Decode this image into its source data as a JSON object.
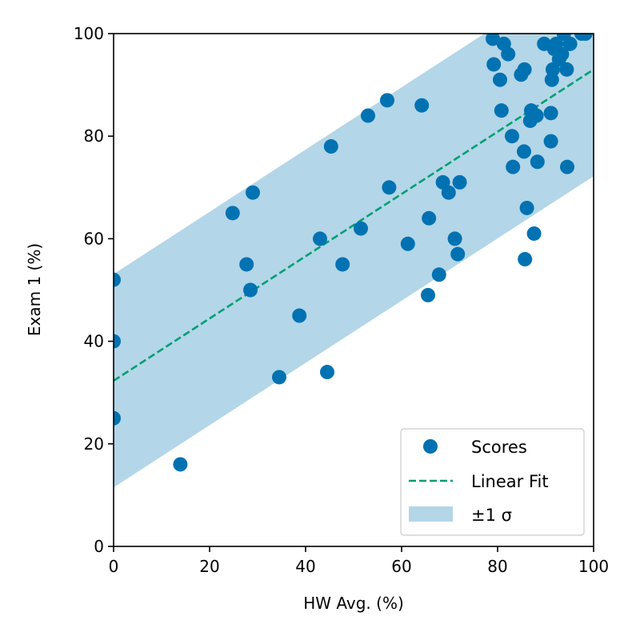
{
  "chart_data": {
    "type": "scatter",
    "title": "",
    "xlabel": "HW Avg. (%)",
    "ylabel": "Exam 1 (%)",
    "xlim": [
      0,
      100
    ],
    "ylim": [
      0,
      100
    ],
    "xticks": [
      "0",
      "20",
      "40",
      "60",
      "80",
      "100"
    ],
    "yticks": [
      "0",
      "20",
      "40",
      "60",
      "80",
      "100"
    ],
    "grid": false,
    "legend_position": "lower-right",
    "legend": {
      "scores": "Scores",
      "fit": "Linear Fit",
      "band": "±1 σ"
    },
    "colors": {
      "points": "#0072b2",
      "fit": "#009e73",
      "band": "#b3d6e8"
    },
    "fit": {
      "slope": 0.607,
      "intercept": 32.3
    },
    "band_sigma": 20.8,
    "series": [
      {
        "name": "Scores",
        "points": [
          [
            0,
            52
          ],
          [
            0,
            40
          ],
          [
            0,
            25
          ],
          [
            13.9,
            16
          ],
          [
            24.8,
            65
          ],
          [
            27.7,
            55
          ],
          [
            28.5,
            50
          ],
          [
            29,
            69
          ],
          [
            34.5,
            33
          ],
          [
            38.7,
            45
          ],
          [
            43,
            60
          ],
          [
            44.5,
            34
          ],
          [
            45.3,
            78
          ],
          [
            47.7,
            55
          ],
          [
            51.5,
            62
          ],
          [
            53,
            84
          ],
          [
            57,
            87
          ],
          [
            57.4,
            70
          ],
          [
            61.3,
            59
          ],
          [
            64.2,
            86
          ],
          [
            65.5,
            49
          ],
          [
            65.7,
            64
          ],
          [
            67.8,
            53
          ],
          [
            68.6,
            71
          ],
          [
            69.8,
            69
          ],
          [
            71.1,
            60
          ],
          [
            71.7,
            57
          ],
          [
            72.1,
            71
          ],
          [
            79,
            99
          ],
          [
            79.2,
            94
          ],
          [
            80.5,
            91
          ],
          [
            80.8,
            85
          ],
          [
            81.3,
            98
          ],
          [
            82.2,
            96
          ],
          [
            83,
            80
          ],
          [
            83.2,
            74
          ],
          [
            84.9,
            92
          ],
          [
            85.5,
            77
          ],
          [
            85.6,
            93
          ],
          [
            85.7,
            56
          ],
          [
            86.1,
            66
          ],
          [
            86.8,
            83
          ],
          [
            87,
            85
          ],
          [
            87.6,
            61
          ],
          [
            88.1,
            84
          ],
          [
            88.3,
            75
          ],
          [
            89.7,
            98
          ],
          [
            91.1,
            84.5
          ],
          [
            91.1,
            79
          ],
          [
            91.3,
            91
          ],
          [
            91.5,
            93
          ],
          [
            91.8,
            97
          ],
          [
            92.2,
            98
          ],
          [
            92.8,
            95
          ],
          [
            93.4,
            96
          ],
          [
            93.8,
            100
          ],
          [
            94.4,
            93
          ],
          [
            94.5,
            74
          ],
          [
            95.1,
            98
          ],
          [
            97.5,
            100
          ],
          [
            98.3,
            100
          ]
        ]
      }
    ]
  }
}
